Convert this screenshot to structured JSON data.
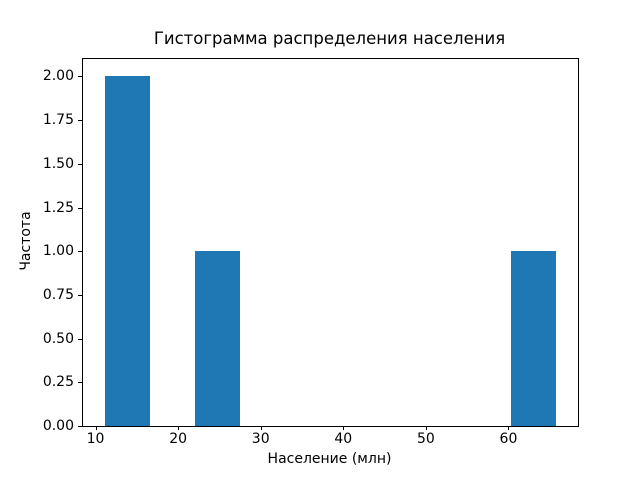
{
  "figure": {
    "background": "#ffffff"
  },
  "chart_data": {
    "type": "histogram",
    "title": "Гистограмма распределения населения",
    "xlabel": "Население (млн)",
    "ylabel": "Частота",
    "bar_color": "#1f77b4",
    "axis_color": "#000000",
    "bin_edges": [
      11.2,
      16.65,
      22.1,
      27.55,
      33.0,
      38.45,
      43.9,
      49.35,
      54.8,
      60.25,
      65.7
    ],
    "counts": [
      2,
      0,
      1,
      0,
      0,
      0,
      0,
      0,
      0,
      1
    ],
    "xlim": [
      8.48,
      68.42
    ],
    "ylim": [
      0,
      2.1
    ],
    "x_tick_values": [
      10,
      20,
      30,
      40,
      50,
      60
    ],
    "x_tick_labels": [
      "10",
      "20",
      "30",
      "40",
      "50",
      "60"
    ],
    "y_tick_values": [
      0,
      0.25,
      0.5,
      0.75,
      1.0,
      1.25,
      1.5,
      1.75,
      2.0
    ],
    "y_tick_labels": [
      "0.00",
      "0.25",
      "0.50",
      "0.75",
      "1.00",
      "1.25",
      "1.50",
      "1.75",
      "2.00"
    ],
    "grid": false,
    "legend": null
  }
}
